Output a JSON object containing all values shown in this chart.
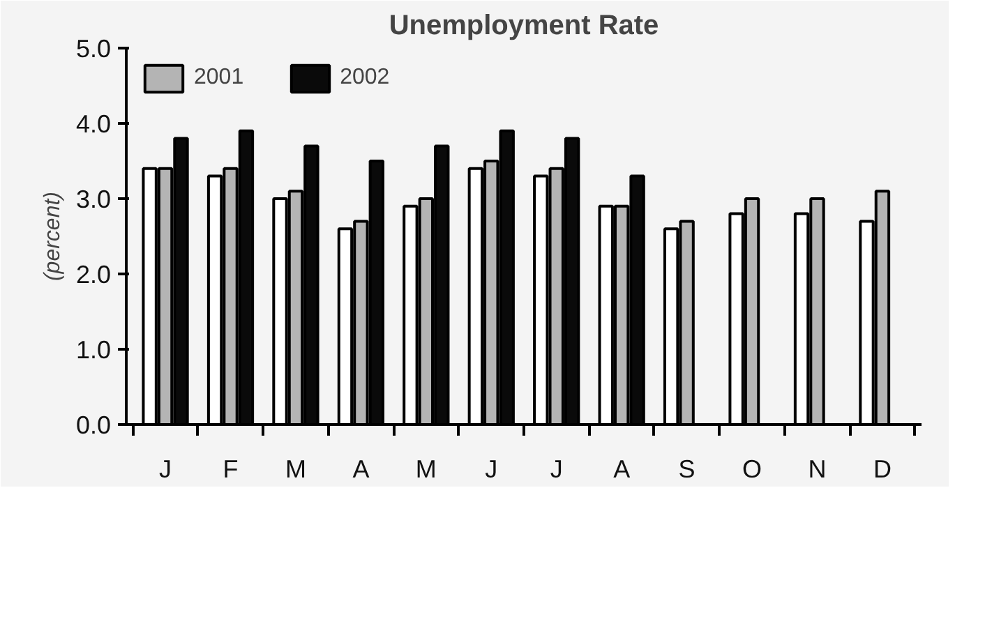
{
  "chart_data": {
    "type": "bar",
    "title": "Unemployment Rate",
    "ylabel": "(percent)",
    "categories": [
      "J",
      "F",
      "M",
      "A",
      "M",
      "J",
      "J",
      "A",
      "S",
      "O",
      "N",
      "D"
    ],
    "series": [
      {
        "color": "#ffffff",
        "values": [
          3.4,
          3.3,
          3.0,
          2.6,
          2.9,
          3.4,
          3.3,
          2.9,
          2.6,
          2.8,
          2.8,
          2.7
        ]
      },
      {
        "name": "2001",
        "color": "#b4b4b4",
        "values": [
          3.4,
          3.4,
          3.1,
          2.7,
          3.0,
          3.5,
          3.4,
          2.9,
          2.7,
          3.0,
          3.0,
          3.1
        ]
      },
      {
        "name": "2002",
        "color": "#0a0a0a",
        "values": [
          3.8,
          3.9,
          3.7,
          3.5,
          3.7,
          3.9,
          3.8,
          3.3,
          null,
          null,
          null,
          null
        ]
      }
    ],
    "ylim": [
      0,
      5.0
    ],
    "yticks": [
      {
        "value": 0,
        "label": "0.0"
      },
      {
        "value": 1,
        "label": "1.0"
      },
      {
        "value": 2,
        "label": "2.0"
      },
      {
        "value": 3,
        "label": "3.0"
      },
      {
        "value": 4,
        "label": "4.0"
      },
      {
        "value": 5,
        "label": "5.0"
      }
    ],
    "grid": false,
    "legend": "top left"
  }
}
